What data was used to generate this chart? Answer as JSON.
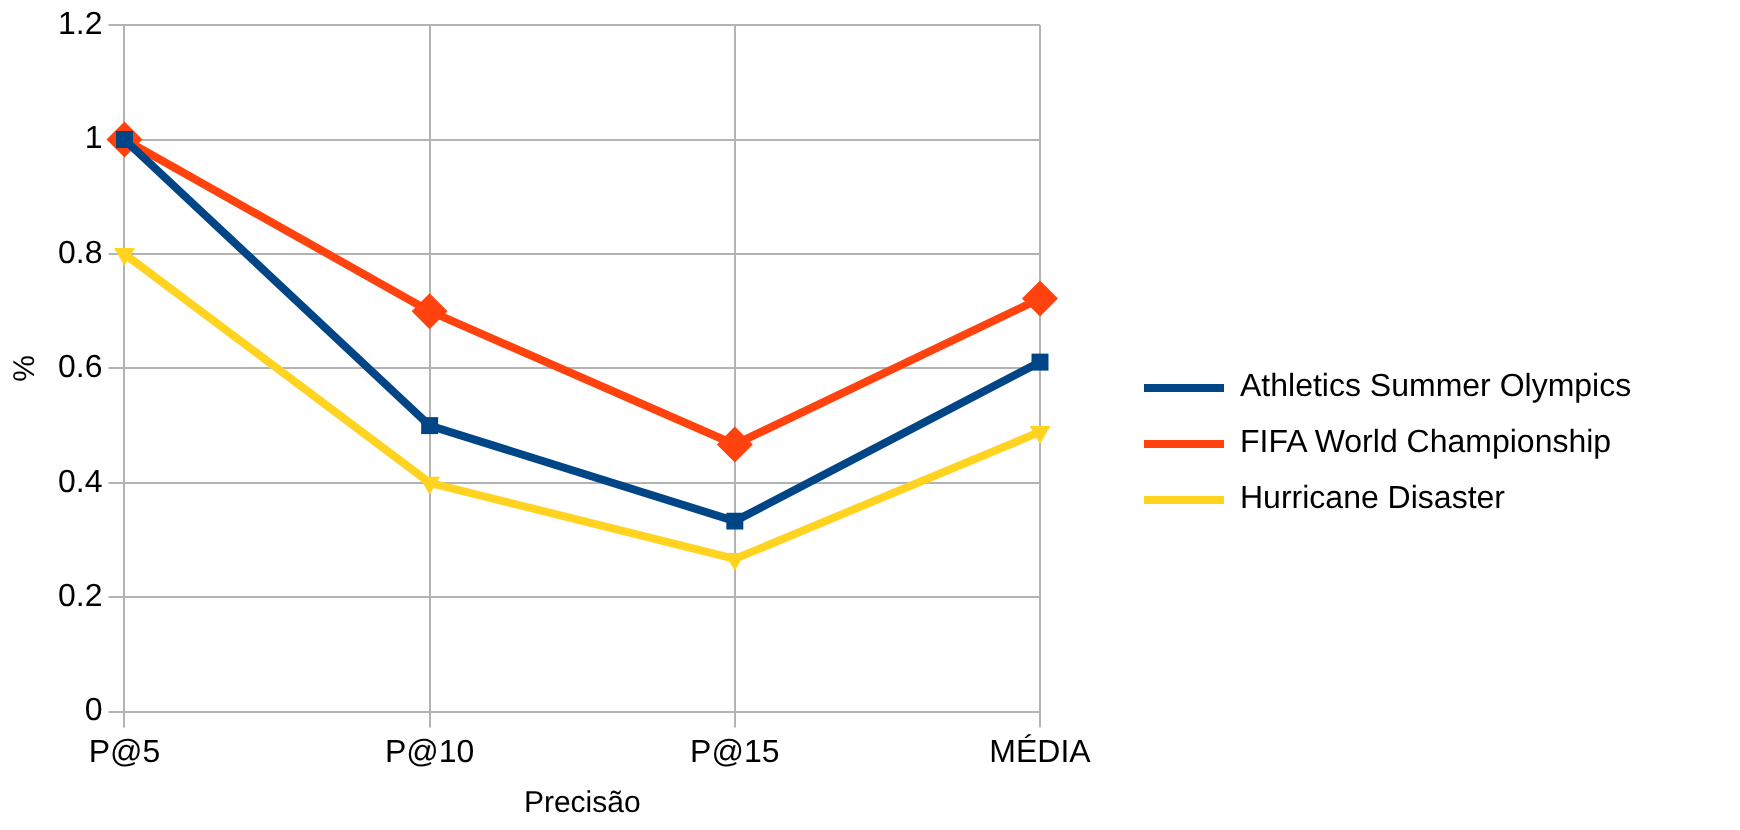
{
  "chart_data": {
    "type": "line",
    "xlabel": "Precisão",
    "ylabel": "%",
    "categories": [
      "P@5",
      "P@10",
      "P@15",
      "MÉDIA"
    ],
    "series": [
      {
        "name": "Athletics Summer Olympics",
        "color": "#004586",
        "marker": "square",
        "values": [
          1,
          0.5,
          0.333,
          0.611
        ]
      },
      {
        "name": "FIFA World Championship",
        "color": "#ff420e",
        "marker": "diamond",
        "values": [
          1,
          0.7,
          0.467,
          0.722
        ]
      },
      {
        "name": "Hurricane Disaster",
        "color": "#ffd320",
        "marker": "triangle",
        "values": [
          0.8,
          0.4,
          0.267,
          0.489
        ]
      }
    ],
    "ylim": [
      0,
      1.2
    ],
    "yticks": [
      0,
      0.2,
      0.4,
      0.6,
      0.8,
      1,
      1.2
    ],
    "grid": true,
    "legend": "right",
    "line_style": "solid"
  }
}
